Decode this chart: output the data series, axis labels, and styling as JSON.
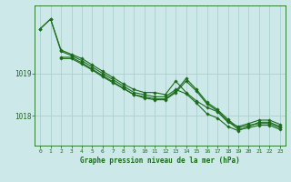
{
  "bg_color": "#cce8e8",
  "grid_color": "#aad0d0",
  "line_color": "#1a6b1a",
  "title": "Graphe pression niveau de la mer (hPa)",
  "xlim": [
    -0.5,
    23.5
  ],
  "ylim": [
    1017.3,
    1020.6
  ],
  "yticks": [
    1018,
    1019
  ],
  "xticks": [
    0,
    1,
    2,
    3,
    4,
    5,
    6,
    7,
    8,
    9,
    10,
    11,
    12,
    13,
    14,
    15,
    16,
    17,
    18,
    19,
    20,
    21,
    22,
    23
  ],
  "hours": [
    0,
    1,
    2,
    3,
    4,
    5,
    6,
    7,
    8,
    9,
    10,
    11,
    12,
    13,
    14,
    15,
    16,
    17,
    18,
    19,
    20,
    21,
    22,
    23
  ],
  "line1": [
    1020.05,
    1020.28,
    1019.55,
    1019.45,
    1019.35,
    1019.2,
    1019.05,
    1018.9,
    1018.75,
    1018.62,
    1018.55,
    1018.55,
    1018.5,
    1018.82,
    1018.55,
    1018.35,
    1018.2,
    1018.1,
    1017.85,
    1017.75,
    1017.82,
    1017.9,
    1017.9,
    1017.8
  ],
  "line2": [
    1020.05,
    1020.28,
    1019.52,
    1019.42,
    1019.3,
    1019.15,
    1019.0,
    1018.85,
    1018.7,
    1018.55,
    1018.5,
    1018.45,
    1018.45,
    1018.62,
    1018.52,
    1018.3,
    1018.05,
    1017.95,
    1017.75,
    1017.65,
    1017.75,
    1017.85,
    1017.85,
    1017.75
  ],
  "line3": [
    null,
    null,
    1019.38,
    1019.38,
    1019.25,
    1019.1,
    1018.95,
    1018.8,
    1018.65,
    1018.5,
    1018.45,
    1018.4,
    1018.4,
    1018.58,
    1018.88,
    1018.62,
    1018.32,
    1018.15,
    1017.92,
    1017.72,
    1017.78,
    1017.82,
    1017.82,
    1017.72
  ],
  "line4": [
    null,
    null,
    1019.35,
    1019.35,
    1019.22,
    1019.08,
    1018.92,
    1018.78,
    1018.64,
    1018.5,
    1018.42,
    1018.38,
    1018.38,
    1018.55,
    1018.82,
    1018.58,
    1018.28,
    1018.12,
    1017.88,
    1017.68,
    1017.72,
    1017.78,
    1017.78,
    1017.68
  ]
}
